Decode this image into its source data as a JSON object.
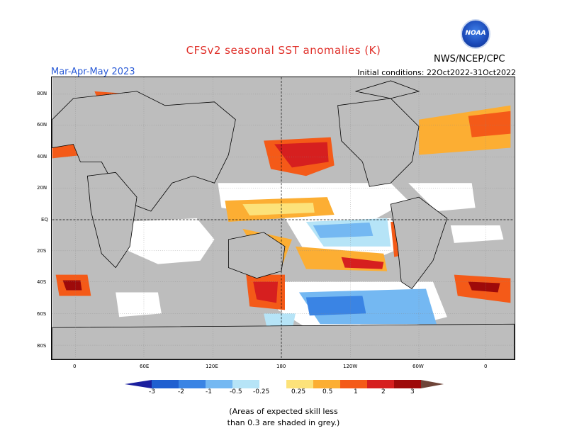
{
  "title": "CFSv2 seasonal SST anomalies (K)",
  "period": "Mar-Apr-May 2023",
  "initial_conditions": "Initial conditions: 22Oct2022-31Oct2022",
  "agency": "NWS/NCEP/CPC",
  "logo_text": "NOAA",
  "lat_labels": [
    "80N",
    "60N",
    "40N",
    "20N",
    "EQ",
    "20S",
    "40S",
    "60S",
    "80S"
  ],
  "lon_labels": [
    "0",
    "60E",
    "120E",
    "180",
    "120W",
    "60W",
    "0"
  ],
  "colorbar": {
    "labels": [
      "-3",
      "-2",
      "-1",
      "-0.5",
      "-0.25",
      "0.25",
      "0.5",
      "1",
      "2",
      "3"
    ],
    "colors": [
      "#1b1f9e",
      "#1f5fd0",
      "#3a84e4",
      "#74b8f2",
      "#b6e4f7",
      "#ffffff",
      "#fce27a",
      "#fcae33",
      "#f45a18",
      "#d61f1f",
      "#9e0a0a",
      "#6e4438"
    ]
  },
  "note": [
    "(Areas of expected skill less",
    "than 0.3 are shaded in grey.)"
  ]
}
